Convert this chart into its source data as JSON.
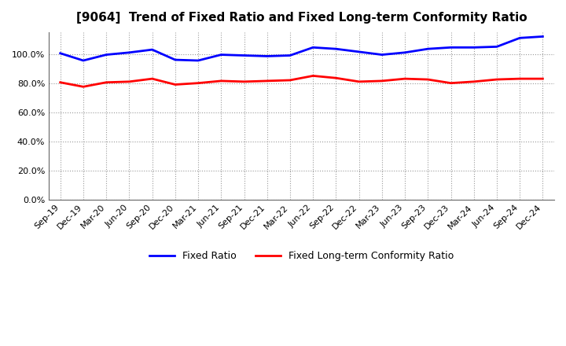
{
  "title": "[9064]  Trend of Fixed Ratio and Fixed Long-term Conformity Ratio",
  "x_labels": [
    "Sep-19",
    "Dec-19",
    "Mar-20",
    "Jun-20",
    "Sep-20",
    "Dec-20",
    "Mar-21",
    "Jun-21",
    "Sep-21",
    "Dec-21",
    "Mar-22",
    "Jun-22",
    "Sep-22",
    "Dec-22",
    "Mar-23",
    "Jun-23",
    "Sep-23",
    "Dec-23",
    "Mar-24",
    "Jun-24",
    "Sep-24",
    "Dec-24"
  ],
  "fixed_ratio": [
    100.5,
    95.5,
    99.5,
    101.0,
    103.0,
    96.0,
    95.5,
    99.5,
    99.0,
    98.5,
    99.0,
    104.5,
    103.5,
    101.5,
    99.5,
    101.0,
    103.5,
    104.5,
    104.5,
    105.0,
    111.0,
    112.0
  ],
  "fixed_lt_ratio": [
    80.5,
    77.5,
    80.5,
    81.0,
    83.0,
    79.0,
    80.0,
    81.5,
    81.0,
    81.5,
    82.0,
    85.0,
    83.5,
    81.0,
    81.5,
    83.0,
    82.5,
    80.0,
    81.0,
    82.5,
    83.0,
    83.0
  ],
  "fixed_ratio_color": "#0000FF",
  "fixed_lt_ratio_color": "#FF0000",
  "ylim": [
    0,
    115
  ],
  "yticks": [
    0,
    20,
    40,
    60,
    80,
    100
  ],
  "background_color": "#FFFFFF",
  "plot_bg_color": "#FFFFFF",
  "grid_color": "#999999",
  "legend_fixed": "Fixed Ratio",
  "legend_lt": "Fixed Long-term Conformity Ratio"
}
